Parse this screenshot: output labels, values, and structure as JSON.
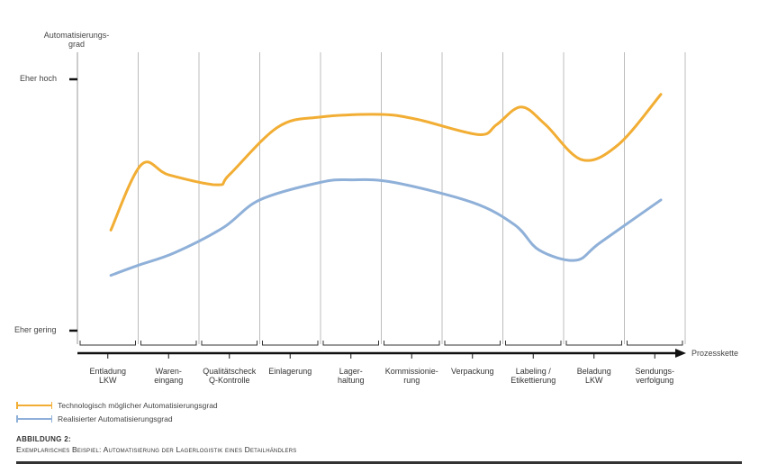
{
  "chart_data": {
    "type": "line",
    "y_axis_title": "Automatisierungs-\ngrad",
    "y_ticks": [
      "Eher hoch",
      "Eher gering"
    ],
    "x_axis_title": "Prozesskette",
    "categories": [
      "Entladung\nLKW",
      "Waren-\neingang",
      "Qualitätscheck\nQ-Kontrolle",
      "Einlagerung",
      "Lager-\nhaltung",
      "Kommissionie-\nrung",
      "Verpackung",
      "Labeling /\nEtikettierung",
      "Beladung\nLKW",
      "Sendungs-\nverfolgung"
    ],
    "ylim": [
      0,
      1
    ],
    "grid": "vertical category separators",
    "series": [
      {
        "name": "Technologisch möglicher Automatisierungsgrad",
        "color": "#F2AE34",
        "points": [
          [
            0.55,
            0.4
          ],
          [
            1.05,
            0.66
          ],
          [
            1.5,
            0.62
          ],
          [
            2.3,
            0.58
          ],
          [
            2.5,
            0.62
          ],
          [
            3.3,
            0.81
          ],
          [
            4.0,
            0.85
          ],
          [
            5.0,
            0.86
          ],
          [
            5.6,
            0.84
          ],
          [
            6.6,
            0.78
          ],
          [
            6.9,
            0.82
          ],
          [
            7.3,
            0.89
          ],
          [
            7.7,
            0.82
          ],
          [
            8.3,
            0.68
          ],
          [
            8.9,
            0.74
          ],
          [
            9.6,
            0.94
          ]
        ]
      },
      {
        "name": "Realisierter Automatisierungsgrad",
        "color": "#8FB0D8",
        "points": [
          [
            0.55,
            0.22
          ],
          [
            1.0,
            0.26
          ],
          [
            1.6,
            0.31
          ],
          [
            2.4,
            0.41
          ],
          [
            3.0,
            0.52
          ],
          [
            4.0,
            0.59
          ],
          [
            4.5,
            0.6
          ],
          [
            5.2,
            0.59
          ],
          [
            6.5,
            0.51
          ],
          [
            7.2,
            0.42
          ],
          [
            7.6,
            0.32
          ],
          [
            8.2,
            0.28
          ],
          [
            8.6,
            0.35
          ],
          [
            9.6,
            0.52
          ]
        ]
      }
    ]
  },
  "legend": [
    {
      "label": "Technologisch möglicher Automatisierungsgrad",
      "color": "#F2AE34"
    },
    {
      "label": "Realisierter Automatisierungsgrad",
      "color": "#8FB0D8"
    }
  ],
  "caption": {
    "number": "ABBILDUNG 2:",
    "title": "Exemplarisches Beispiel: Automatisierung der Lagerlogistik eines Detailhändlers"
  }
}
